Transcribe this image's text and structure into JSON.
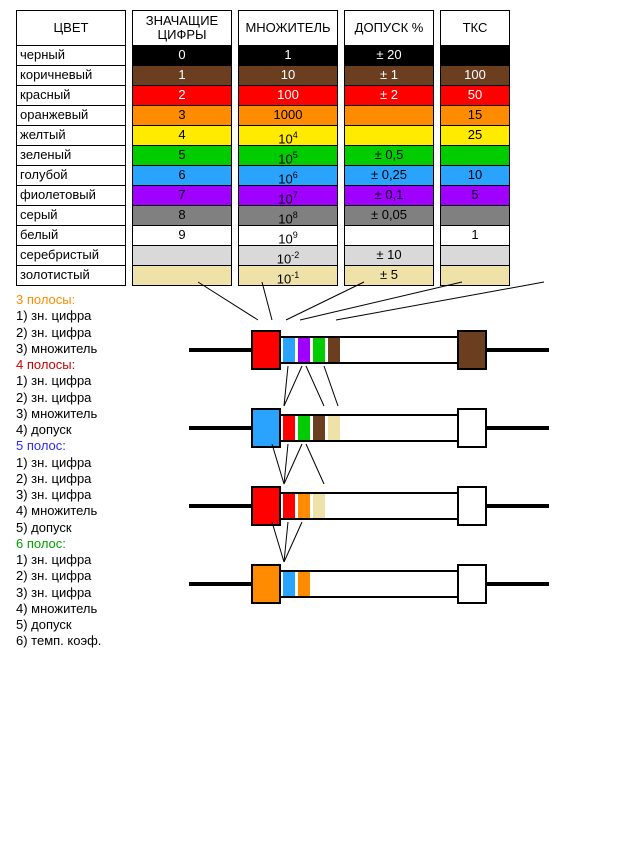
{
  "headers": {
    "color": "ЦВЕТ",
    "digits": "ЗНАЧАЩИЕ ЦИФРЫ",
    "multiplier": "МНОЖИТЕЛЬ",
    "tolerance": "ДОПУСК %",
    "tkc": "ТКС"
  },
  "rows": [
    {
      "name": "черный",
      "digit": "0",
      "mult": "1",
      "sup": "",
      "tol": "± 20",
      "tkc": "",
      "bg": "#000000",
      "fg": "#ffffff"
    },
    {
      "name": "коричневый",
      "digit": "1",
      "mult": "10",
      "sup": "",
      "tol": "± 1",
      "tkc": "100",
      "bg": "#6b3e1f",
      "fg": "#ffffff"
    },
    {
      "name": "красный",
      "digit": "2",
      "mult": "100",
      "sup": "",
      "tol": "± 2",
      "tkc": "50",
      "bg": "#ff0000",
      "fg": "#ffffff"
    },
    {
      "name": "оранжевый",
      "digit": "3",
      "mult": "1000",
      "sup": "",
      "tol": "",
      "tkc": "15",
      "bg": "#ff8c00",
      "fg": "#000000"
    },
    {
      "name": "желтый",
      "digit": "4",
      "mult": "10",
      "sup": "4",
      "tol": "",
      "tkc": "25",
      "bg": "#ffeb00",
      "fg": "#000000"
    },
    {
      "name": "зеленый",
      "digit": "5",
      "mult": "10",
      "sup": "5",
      "tol": "± 0,5",
      "tkc": "",
      "bg": "#00cc00",
      "fg": "#000000"
    },
    {
      "name": "голубой",
      "digit": "6",
      "mult": "10",
      "sup": "6",
      "tol": "± 0,25",
      "tkc": "10",
      "bg": "#2aa3ff",
      "fg": "#000000"
    },
    {
      "name": "фиолетовый",
      "digit": "7",
      "mult": "10",
      "sup": "7",
      "tol": "± 0,1",
      "tkc": "5",
      "bg": "#a000ff",
      "fg": "#000000"
    },
    {
      "name": "серый",
      "digit": "8",
      "mult": "10",
      "sup": "8",
      "tol": "± 0,05",
      "tkc": "",
      "bg": "#808080",
      "fg": "#000000"
    },
    {
      "name": "белый",
      "digit": "9",
      "mult": "10",
      "sup": "9",
      "tol": "",
      "tkc": "1",
      "bg": "#ffffff",
      "fg": "#000000"
    },
    {
      "name": "серебристый",
      "digit": "",
      "mult": "10",
      "sup": "-2",
      "tol": "± 10",
      "tkc": "",
      "bg": "#d9d9d9",
      "fg": "#000000"
    },
    {
      "name": "золотистый",
      "digit": "",
      "mult": "10",
      "sup": "-1",
      "tol": "± 5",
      "tkc": "",
      "bg": "#efe2a8",
      "fg": "#000000"
    }
  ],
  "legend_groups": [
    {
      "title": "3 полосы:",
      "color": "#ff8c00",
      "items": [
        "1) зн. цифра",
        "2) зн. цифра",
        "3) множитель"
      ]
    },
    {
      "title": "4 полосы:",
      "color": "#cc0000",
      "items": [
        "1) зн. цифра",
        "2) зн. цифра",
        "3) множитель",
        "4) допуск"
      ]
    },
    {
      "title": "5 полос:",
      "color": "#2a2aff",
      "items": [
        "1) зн. цифра",
        "2) зн. цифра",
        "3) зн. цифра",
        "4) множитель",
        "5) допуск"
      ]
    },
    {
      "title": "6 полос:",
      "color": "#00a000",
      "items": [
        "1) зн. цифра",
        "2) зн. цифра",
        "3) зн. цифра",
        "4) множитель",
        "5) допуск",
        "6) темп. коэф."
      ]
    }
  ],
  "resistors": [
    {
      "endcap_l": "#ff0000",
      "endcap_r": "#6b3e1f",
      "bands": [
        "#2aa3ff",
        "#a000ff",
        "#00cc00",
        "#6b3e1f"
      ]
    },
    {
      "endcap_l": "#2aa3ff",
      "endcap_r": "#ffffff",
      "bands": [
        "#ff0000",
        "#00cc00",
        "#6b3e1f",
        "#efe2a8"
      ]
    },
    {
      "endcap_l": "#ff0000",
      "endcap_r": "#ffffff",
      "bands": [
        "#ff0000",
        "#ff8c00",
        "#efe2a8"
      ]
    },
    {
      "endcap_l": "#ff8c00",
      "endcap_r": "#ffffff",
      "bands": [
        "#2aa3ff",
        "#ff8c00"
      ]
    }
  ],
  "connector_lines": [
    [
      198,
      281,
      258,
      326
    ],
    [
      262,
      281,
      272,
      326
    ],
    [
      364,
      281,
      286,
      326
    ],
    [
      462,
      281,
      300,
      326
    ],
    [
      544,
      281,
      336,
      326
    ]
  ],
  "resistor_internal_lines": [
    {
      "r": 1,
      "lines": [
        [
          0,
          28,
          18,
          -12
        ],
        [
          0,
          28,
          4,
          -12
        ],
        [
          40,
          28,
          22,
          -12
        ],
        [
          54,
          28,
          40,
          -12
        ]
      ]
    },
    {
      "r": 2,
      "lines": [
        [
          0,
          28,
          18,
          -12
        ],
        [
          0,
          28,
          4,
          -12
        ],
        [
          0,
          28,
          -12,
          -12
        ],
        [
          40,
          28,
          22,
          -12
        ]
      ]
    },
    {
      "r": 3,
      "lines": [
        [
          0,
          28,
          18,
          -12
        ],
        [
          0,
          28,
          4,
          -12
        ],
        [
          0,
          28,
          -12,
          -12
        ]
      ]
    }
  ]
}
